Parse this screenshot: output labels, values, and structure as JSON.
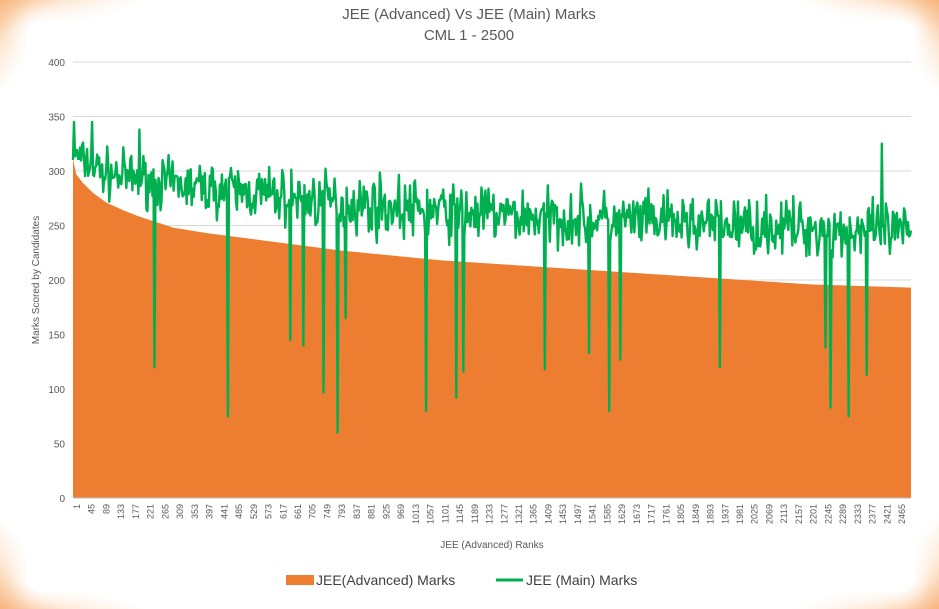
{
  "chart_data": {
    "type": "bar",
    "title": "JEE (Advanced) Vs JEE (Main) Marks",
    "subtitle": "CML 1 - 2500",
    "xlabel": "JEE (Advanced) Ranks",
    "ylabel": "Marks Scored by Candidates",
    "ylim": [
      0,
      400
    ],
    "yticks": [
      0,
      50,
      100,
      150,
      200,
      250,
      300,
      350,
      400
    ],
    "xlim": [
      1,
      2500
    ],
    "xtick_labels": [
      "1",
      "45",
      "89",
      "133",
      "177",
      "221",
      "265",
      "309",
      "353",
      "397",
      "441",
      "485",
      "529",
      "573",
      "617",
      "661",
      "705",
      "749",
      "793",
      "837",
      "881",
      "925",
      "969",
      "1013",
      "1057",
      "1101",
      "1145",
      "1189",
      "1233",
      "1277",
      "1321",
      "1365",
      "1409",
      "1453",
      "1497",
      "1541",
      "1585",
      "1629",
      "1673",
      "1717",
      "1761",
      "1805",
      "1849",
      "1893",
      "1937",
      "1981",
      "2025",
      "2069",
      "2113",
      "2157",
      "2201",
      "2245",
      "2289",
      "2333",
      "2377",
      "2421",
      "2465"
    ],
    "grid": true,
    "legend_position": "bottom",
    "colors": {
      "advanced": "#ED7D31",
      "main": "#00B050"
    },
    "series": [
      {
        "name": "JEE(Advanced) Marks",
        "type": "bar",
        "rank_points": [
          1,
          10,
          30,
          60,
          100,
          150,
          200,
          250,
          300,
          400,
          500,
          600,
          700,
          800,
          900,
          1000,
          1100,
          1200,
          1300,
          1400,
          1500,
          1600,
          1700,
          1800,
          1900,
          2000,
          2100,
          2200,
          2300,
          2400,
          2500
        ],
        "values": [
          310,
          297,
          289,
          280,
          271,
          264,
          258,
          253,
          248,
          243,
          239,
          235,
          231,
          227,
          224,
          221,
          218,
          216,
          214,
          212,
          210,
          208,
          206,
          204,
          202,
          200,
          198,
          196,
          195,
          194,
          193
        ]
      },
      {
        "name": "JEE (Main) Marks",
        "type": "line",
        "band_rank_points": [
          1,
          100,
          300,
          600,
          1000,
          1400,
          1800,
          2200,
          2500
        ],
        "band_low": [
          290,
          265,
          255,
          240,
          225,
          220,
          215,
          210,
          205
        ],
        "band_high": [
          340,
          330,
          320,
          315,
          305,
          295,
          290,
          285,
          280
        ],
        "dips": [
          {
            "rank": 245,
            "value": 120
          },
          {
            "rank": 465,
            "value": 75
          },
          {
            "rank": 650,
            "value": 145
          },
          {
            "rank": 690,
            "value": 140
          },
          {
            "rank": 750,
            "value": 97
          },
          {
            "rank": 790,
            "value": 60
          },
          {
            "rank": 815,
            "value": 165
          },
          {
            "rank": 1055,
            "value": 80
          },
          {
            "rank": 1145,
            "value": 92
          },
          {
            "rank": 1165,
            "value": 116
          },
          {
            "rank": 1410,
            "value": 118
          },
          {
            "rank": 1540,
            "value": 133
          },
          {
            "rank": 1600,
            "value": 80
          },
          {
            "rank": 1635,
            "value": 127
          },
          {
            "rank": 1930,
            "value": 120
          },
          {
            "rank": 2245,
            "value": 138
          },
          {
            "rank": 2260,
            "value": 83
          },
          {
            "rank": 2315,
            "value": 75
          },
          {
            "rank": 2370,
            "value": 113
          }
        ],
        "peaks": [
          {
            "rank": 5,
            "value": 345
          },
          {
            "rank": 60,
            "value": 345
          },
          {
            "rank": 200,
            "value": 338
          },
          {
            "rank": 2415,
            "value": 325
          }
        ]
      }
    ]
  }
}
